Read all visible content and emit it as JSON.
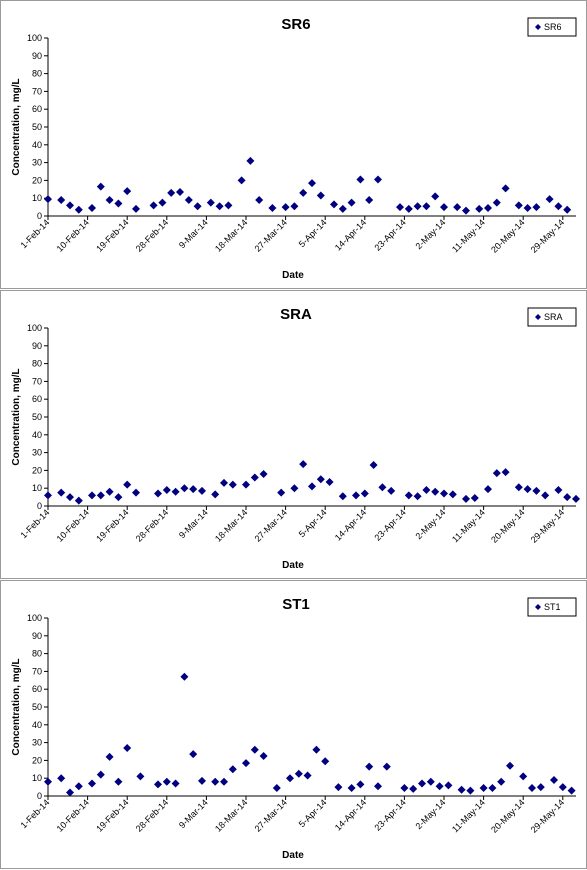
{
  "chart_data": [
    {
      "type": "scatter",
      "title": "SR6",
      "xlabel": "Date",
      "ylabel": "Concentration, mg/L",
      "ylim": [
        0,
        100
      ],
      "yticks": [
        "0",
        "10",
        "20",
        "30",
        "40",
        "50",
        "60",
        "70",
        "80",
        "90",
        "100"
      ],
      "xlim": [
        "2014-02-01",
        "2014-06-01"
      ],
      "xticks": [
        {
          "label": "1-Feb-14",
          "date": "2014-02-01"
        },
        {
          "label": "10-Feb-14",
          "date": "2014-02-10"
        },
        {
          "label": "19-Feb-14",
          "date": "2014-02-19"
        },
        {
          "label": "28-Feb-14",
          "date": "2014-02-28"
        },
        {
          "label": "9-Mar-14",
          "date": "2014-03-09"
        },
        {
          "label": "18-Mar-14",
          "date": "2014-03-18"
        },
        {
          "label": "27-Mar-14",
          "date": "2014-03-27"
        },
        {
          "label": "5-Apr-14",
          "date": "2014-04-05"
        },
        {
          "label": "14-Apr-14",
          "date": "2014-04-14"
        },
        {
          "label": "23-Apr-14",
          "date": "2014-04-23"
        },
        {
          "label": "2-May-14",
          "date": "2014-05-02"
        },
        {
          "label": "11-May-14",
          "date": "2014-05-11"
        },
        {
          "label": "20-May-14",
          "date": "2014-05-20"
        },
        {
          "label": "29-May-14",
          "date": "2014-05-29"
        }
      ],
      "grid": false,
      "legend_position": "top-right",
      "series": [
        {
          "name": "SR6",
          "color": "#000080",
          "marker": "diamond",
          "points": [
            [
              "2014-02-01",
              9.5
            ],
            [
              "2014-02-04",
              9
            ],
            [
              "2014-02-06",
              6
            ],
            [
              "2014-02-08",
              3.5
            ],
            [
              "2014-02-11",
              4.5
            ],
            [
              "2014-02-13",
              16.5
            ],
            [
              "2014-02-15",
              9
            ],
            [
              "2014-02-17",
              7
            ],
            [
              "2014-02-19",
              14
            ],
            [
              "2014-02-21",
              4
            ],
            [
              "2014-02-25",
              6
            ],
            [
              "2014-02-27",
              7.5
            ],
            [
              "2014-03-01",
              13
            ],
            [
              "2014-03-03",
              13.5
            ],
            [
              "2014-03-05",
              9
            ],
            [
              "2014-03-07",
              5.5
            ],
            [
              "2014-03-10",
              7.5
            ],
            [
              "2014-03-12",
              5.5
            ],
            [
              "2014-03-14",
              6
            ],
            [
              "2014-03-17",
              20
            ],
            [
              "2014-03-19",
              31
            ],
            [
              "2014-03-21",
              9
            ],
            [
              "2014-03-24",
              4.5
            ],
            [
              "2014-03-27",
              5
            ],
            [
              "2014-03-29",
              5.5
            ],
            [
              "2014-03-31",
              13
            ],
            [
              "2014-04-02",
              18.5
            ],
            [
              "2014-04-04",
              11.5
            ],
            [
              "2014-04-07",
              6.5
            ],
            [
              "2014-04-09",
              4
            ],
            [
              "2014-04-11",
              7.5
            ],
            [
              "2014-04-13",
              20.5
            ],
            [
              "2014-04-15",
              9
            ],
            [
              "2014-04-17",
              20.5
            ],
            [
              "2014-04-22",
              5
            ],
            [
              "2014-04-24",
              4
            ],
            [
              "2014-04-26",
              5.5
            ],
            [
              "2014-04-28",
              5.5
            ],
            [
              "2014-04-30",
              11
            ],
            [
              "2014-05-02",
              5
            ],
            [
              "2014-05-05",
              5
            ],
            [
              "2014-05-07",
              3
            ],
            [
              "2014-05-10",
              4
            ],
            [
              "2014-05-12",
              4.5
            ],
            [
              "2014-05-14",
              7.5
            ],
            [
              "2014-05-16",
              15.5
            ],
            [
              "2014-05-19",
              6
            ],
            [
              "2014-05-21",
              4.5
            ],
            [
              "2014-05-23",
              5
            ],
            [
              "2014-05-26",
              9.5
            ],
            [
              "2014-05-28",
              5.5
            ],
            [
              "2014-05-30",
              3.5
            ]
          ]
        }
      ]
    },
    {
      "type": "scatter",
      "title": "SRA",
      "xlabel": "Date",
      "ylabel": "Concentration, mg/L",
      "ylim": [
        0,
        100
      ],
      "yticks": [
        "0",
        "10",
        "20",
        "30",
        "40",
        "50",
        "60",
        "70",
        "80",
        "90",
        "100"
      ],
      "xlim": [
        "2014-02-01",
        "2014-06-01"
      ],
      "xticks": [
        {
          "label": "1-Feb-14",
          "date": "2014-02-01"
        },
        {
          "label": "10-Feb-14",
          "date": "2014-02-10"
        },
        {
          "label": "19-Feb-14",
          "date": "2014-02-19"
        },
        {
          "label": "28-Feb-14",
          "date": "2014-02-28"
        },
        {
          "label": "9-Mar-14",
          "date": "2014-03-09"
        },
        {
          "label": "18-Mar-14",
          "date": "2014-03-18"
        },
        {
          "label": "27-Mar-14",
          "date": "2014-03-27"
        },
        {
          "label": "5-Apr-14",
          "date": "2014-04-05"
        },
        {
          "label": "14-Apr-14",
          "date": "2014-04-14"
        },
        {
          "label": "23-Apr-14",
          "date": "2014-04-23"
        },
        {
          "label": "2-May-14",
          "date": "2014-05-02"
        },
        {
          "label": "11-May-14",
          "date": "2014-05-11"
        },
        {
          "label": "20-May-14",
          "date": "2014-05-20"
        },
        {
          "label": "29-May-14",
          "date": "2014-05-29"
        }
      ],
      "grid": false,
      "legend_position": "top-right",
      "series": [
        {
          "name": "SRA",
          "color": "#000080",
          "marker": "diamond",
          "points": [
            [
              "2014-02-01",
              6
            ],
            [
              "2014-02-04",
              7.5
            ],
            [
              "2014-02-06",
              5
            ],
            [
              "2014-02-08",
              3
            ],
            [
              "2014-02-11",
              6
            ],
            [
              "2014-02-13",
              6
            ],
            [
              "2014-02-15",
              8
            ],
            [
              "2014-02-17",
              5
            ],
            [
              "2014-02-19",
              12
            ],
            [
              "2014-02-21",
              7.5
            ],
            [
              "2014-02-26",
              7
            ],
            [
              "2014-02-28",
              9
            ],
            [
              "2014-03-02",
              8
            ],
            [
              "2014-03-04",
              10
            ],
            [
              "2014-03-06",
              9.5
            ],
            [
              "2014-03-08",
              8.5
            ],
            [
              "2014-03-11",
              6.5
            ],
            [
              "2014-03-13",
              13
            ],
            [
              "2014-03-15",
              12
            ],
            [
              "2014-03-18",
              12
            ],
            [
              "2014-03-20",
              16
            ],
            [
              "2014-03-22",
              18
            ],
            [
              "2014-03-26",
              7.5
            ],
            [
              "2014-03-29",
              10
            ],
            [
              "2014-03-31",
              23.5
            ],
            [
              "2014-04-02",
              11
            ],
            [
              "2014-04-04",
              15
            ],
            [
              "2014-04-06",
              13.5
            ],
            [
              "2014-04-09",
              5.5
            ],
            [
              "2014-04-12",
              6
            ],
            [
              "2014-04-14",
              7
            ],
            [
              "2014-04-16",
              23
            ],
            [
              "2014-04-18",
              10.5
            ],
            [
              "2014-04-20",
              8.5
            ],
            [
              "2014-04-24",
              6
            ],
            [
              "2014-04-26",
              5.5
            ],
            [
              "2014-04-28",
              9
            ],
            [
              "2014-04-30",
              8
            ],
            [
              "2014-05-02",
              7
            ],
            [
              "2014-05-04",
              6.5
            ],
            [
              "2014-05-07",
              4
            ],
            [
              "2014-05-09",
              4.5
            ],
            [
              "2014-05-12",
              9.5
            ],
            [
              "2014-05-14",
              18.5
            ],
            [
              "2014-05-16",
              19
            ],
            [
              "2014-05-19",
              10.5
            ],
            [
              "2014-05-21",
              9.5
            ],
            [
              "2014-05-23",
              8.5
            ],
            [
              "2014-05-25",
              6
            ],
            [
              "2014-05-28",
              9
            ],
            [
              "2014-05-30",
              5
            ],
            [
              "2014-06-01",
              4
            ]
          ]
        }
      ]
    },
    {
      "type": "scatter",
      "title": "ST1",
      "xlabel": "Date",
      "ylabel": "Concentration, mg/L",
      "ylim": [
        0,
        100
      ],
      "yticks": [
        "0",
        "10",
        "20",
        "30",
        "40",
        "50",
        "60",
        "70",
        "80",
        "90",
        "100"
      ],
      "xlim": [
        "2014-02-01",
        "2014-06-01"
      ],
      "xticks": [
        {
          "label": "1-Feb-14",
          "date": "2014-02-01"
        },
        {
          "label": "10-Feb-14",
          "date": "2014-02-10"
        },
        {
          "label": "19-Feb-14",
          "date": "2014-02-19"
        },
        {
          "label": "28-Feb-14",
          "date": "2014-02-28"
        },
        {
          "label": "9-Mar-14",
          "date": "2014-03-09"
        },
        {
          "label": "18-Mar-14",
          "date": "2014-03-18"
        },
        {
          "label": "27-Mar-14",
          "date": "2014-03-27"
        },
        {
          "label": "5-Apr-14",
          "date": "2014-04-05"
        },
        {
          "label": "14-Apr-14",
          "date": "2014-04-14"
        },
        {
          "label": "23-Apr-14",
          "date": "2014-04-23"
        },
        {
          "label": "2-May-14",
          "date": "2014-05-02"
        },
        {
          "label": "11-May-14",
          "date": "2014-05-11"
        },
        {
          "label": "20-May-14",
          "date": "2014-05-20"
        },
        {
          "label": "29-May-14",
          "date": "2014-05-29"
        }
      ],
      "grid": false,
      "legend_position": "top-right",
      "series": [
        {
          "name": "ST1",
          "color": "#000080",
          "marker": "diamond",
          "points": [
            [
              "2014-02-01",
              8
            ],
            [
              "2014-02-04",
              10
            ],
            [
              "2014-02-06",
              2
            ],
            [
              "2014-02-08",
              5.5
            ],
            [
              "2014-02-11",
              7
            ],
            [
              "2014-02-13",
              12
            ],
            [
              "2014-02-15",
              22
            ],
            [
              "2014-02-17",
              8
            ],
            [
              "2014-02-19",
              27
            ],
            [
              "2014-02-22",
              11
            ],
            [
              "2014-02-26",
              6.5
            ],
            [
              "2014-02-28",
              8
            ],
            [
              "2014-03-02",
              7
            ],
            [
              "2014-03-04",
              67
            ],
            [
              "2014-03-06",
              23.5
            ],
            [
              "2014-03-08",
              8.5
            ],
            [
              "2014-03-11",
              8
            ],
            [
              "2014-03-13",
              8
            ],
            [
              "2014-03-15",
              15
            ],
            [
              "2014-03-18",
              18.5
            ],
            [
              "2014-03-20",
              26
            ],
            [
              "2014-03-22",
              22.5
            ],
            [
              "2014-03-25",
              4.5
            ],
            [
              "2014-03-28",
              10
            ],
            [
              "2014-03-30",
              12.5
            ],
            [
              "2014-04-01",
              11.5
            ],
            [
              "2014-04-03",
              26
            ],
            [
              "2014-04-05",
              19.5
            ],
            [
              "2014-04-08",
              5
            ],
            [
              "2014-04-11",
              4.5
            ],
            [
              "2014-04-13",
              6.5
            ],
            [
              "2014-04-15",
              16.5
            ],
            [
              "2014-04-17",
              5.5
            ],
            [
              "2014-04-19",
              16.5
            ],
            [
              "2014-04-23",
              4.5
            ],
            [
              "2014-04-25",
              4
            ],
            [
              "2014-04-27",
              7
            ],
            [
              "2014-04-29",
              8
            ],
            [
              "2014-05-01",
              5.5
            ],
            [
              "2014-05-03",
              6
            ],
            [
              "2014-05-06",
              3.5
            ],
            [
              "2014-05-08",
              3
            ],
            [
              "2014-05-11",
              4.5
            ],
            [
              "2014-05-13",
              4.5
            ],
            [
              "2014-05-15",
              8
            ],
            [
              "2014-05-17",
              17
            ],
            [
              "2014-05-20",
              11
            ],
            [
              "2014-05-22",
              4.5
            ],
            [
              "2014-05-24",
              5
            ],
            [
              "2014-05-27",
              9
            ],
            [
              "2014-05-29",
              5
            ],
            [
              "2014-05-31",
              3
            ]
          ]
        }
      ]
    }
  ]
}
